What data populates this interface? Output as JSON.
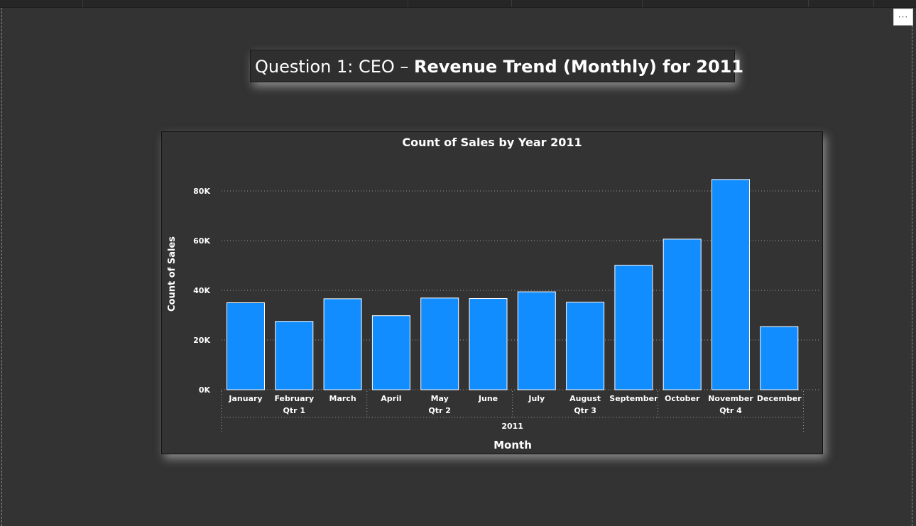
{
  "header": {
    "title_prefix": "Question 1: CEO – ",
    "title_bold": "Revenue Trend (Monthly) for 2011",
    "more_label": "···"
  },
  "chart_data": {
    "type": "bar",
    "title": "Count of Sales by Year 2011",
    "xlabel": "Month",
    "ylabel": "Count of Sales",
    "categories": [
      "January",
      "February",
      "March",
      "April",
      "May",
      "June",
      "July",
      "August",
      "September",
      "October",
      "November",
      "December"
    ],
    "series": [
      {
        "values": [
          35000,
          27500,
          36600,
          29800,
          36900,
          36700,
          39400,
          35200,
          50100,
          60600,
          84600,
          25400
        ]
      }
    ],
    "quarters": [
      "Qtr 1",
      "Qtr 2",
      "Qtr 3",
      "Qtr 4"
    ],
    "year": "2011",
    "yticks": [
      "0K",
      "20K",
      "40K",
      "60K",
      "80K"
    ],
    "ytick_values": [
      0,
      20000,
      40000,
      60000,
      80000
    ],
    "ylim": [
      0,
      88000
    ],
    "grid": true,
    "bar_color": "#118DFF"
  }
}
